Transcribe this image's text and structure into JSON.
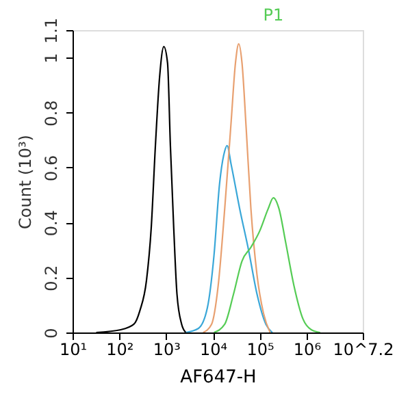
{
  "chart_data": {
    "type": "line",
    "xlabel": "AF647-H",
    "ylabel": "Count (10³)",
    "log": "x",
    "grid": false,
    "legend": false,
    "marker": "none",
    "line_style": "solid",
    "xlim": [
      10,
      15848932
    ],
    "xticks": [
      {
        "value": 10,
        "label": "10¹"
      },
      {
        "value": 100,
        "label": "10²"
      },
      {
        "value": 1000,
        "label": "10³"
      },
      {
        "value": 10000,
        "label": "10⁴"
      },
      {
        "value": 100000,
        "label": "10⁵"
      },
      {
        "value": 1000000,
        "label": "10⁶"
      },
      {
        "value": 15848932,
        "label": "10^7.2"
      }
    ],
    "ylim": [
      0,
      1.1
    ],
    "yticks": [
      0,
      0.2,
      0.4,
      0.6,
      0.8,
      1,
      1.1
    ],
    "series": [
      {
        "color": "#000000",
        "x": [
          32,
          107,
          204,
          275,
          380,
          479,
          589,
          724,
          891,
          1070,
          1230,
          1450,
          1700,
          2140,
          2630
        ],
        "values": [
          0,
          0.01,
          0.03,
          0.08,
          0.19,
          0.38,
          0.68,
          0.93,
          1.04,
          0.98,
          0.68,
          0.38,
          0.14,
          0.03,
          0
        ]
      },
      {
        "color": "#3aa7d8",
        "x": [
          2630,
          4900,
          7590,
          10500,
          13800,
          17800,
          20000,
          24500,
          37200,
          57500,
          87100,
          135000,
          186000
        ],
        "values": [
          0,
          0.015,
          0.09,
          0.28,
          0.54,
          0.66,
          0.68,
          0.61,
          0.45,
          0.3,
          0.14,
          0.03,
          0
        ]
      },
      {
        "color": "#e8a070",
        "x": [
          6170,
          9330,
          12900,
          17800,
          24500,
          30200,
          35500,
          41700,
          51300,
          64600,
          87100,
          120000,
          166000
        ],
        "values": [
          0,
          0.03,
          0.17,
          0.45,
          0.77,
          0.98,
          1.05,
          0.98,
          0.74,
          0.45,
          0.21,
          0.07,
          0
        ]
      },
      {
        "name": "P1",
        "color": "#55cc55",
        "x": [
          10500,
          17800,
          27500,
          41700,
          64600,
          100000,
          151000,
          195000,
          257000,
          355000,
          537000,
          832000,
          1260000,
          1950000
        ],
        "values": [
          0,
          0.03,
          0.14,
          0.26,
          0.31,
          0.37,
          0.45,
          0.49,
          0.45,
          0.33,
          0.17,
          0.05,
          0.01,
          0
        ]
      }
    ]
  }
}
